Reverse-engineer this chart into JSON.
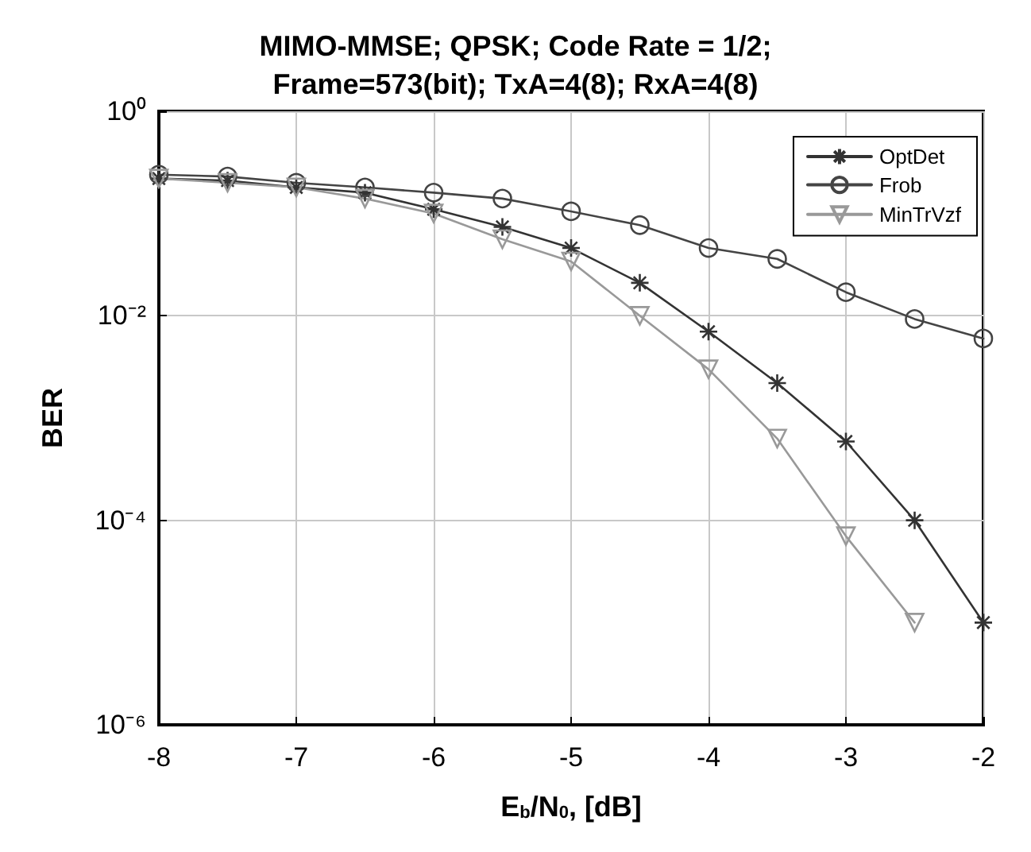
{
  "chart_data": {
    "type": "line",
    "title": "MIMO-MMSE; QPSK; Code Rate = 1/2;\nFrame=573(bit); TxA=4(8); RxA=4(8)",
    "xlabel": "E$_{b}$/N$_{0}$, [dB]",
    "ylabel": "BER",
    "x": [
      -8,
      -7.5,
      -7,
      -6.5,
      -6,
      -5.5,
      -5,
      -4.5,
      -4,
      -3.5,
      -3,
      -2.5,
      -2
    ],
    "series": [
      {
        "name": "OptDet",
        "color": "#333333",
        "marker": "cross",
        "values": [
          0.22,
          0.21,
          0.18,
          0.16,
          0.11,
          0.074,
          0.046,
          0.021,
          0.007,
          0.0022,
          0.00059,
          0.0001,
          1e-05
        ]
      },
      {
        "name": "Frob",
        "color": "#444444",
        "marker": "circle",
        "values": [
          0.24,
          0.23,
          0.2,
          0.18,
          0.16,
          0.14,
          0.105,
          0.077,
          0.046,
          0.036,
          0.017,
          0.0093,
          0.006
        ]
      },
      {
        "name": "MinTrVzf",
        "color": "#999999",
        "marker": "triangle",
        "values": [
          0.22,
          0.2,
          0.18,
          0.14,
          0.1,
          0.056,
          0.034,
          0.01,
          0.003,
          0.00063,
          7e-05,
          1e-05,
          null
        ]
      }
    ],
    "log": "y",
    "xlim": [
      -8,
      -2
    ],
    "xticks": [
      -8,
      -7,
      -6,
      -5,
      -4,
      -3,
      -2
    ],
    "ylim": [
      1e-06,
      1
    ],
    "yticks": [
      {
        "value": 1e-06,
        "label": "10⁻⁶"
      },
      {
        "value": 0.0001,
        "label": "10⁻⁴"
      },
      {
        "value": 0.01,
        "label": "10⁻²"
      },
      {
        "value": 1,
        "label": "10⁰"
      }
    ],
    "grid": true,
    "legend": "top right",
    "line_style": "solid"
  }
}
